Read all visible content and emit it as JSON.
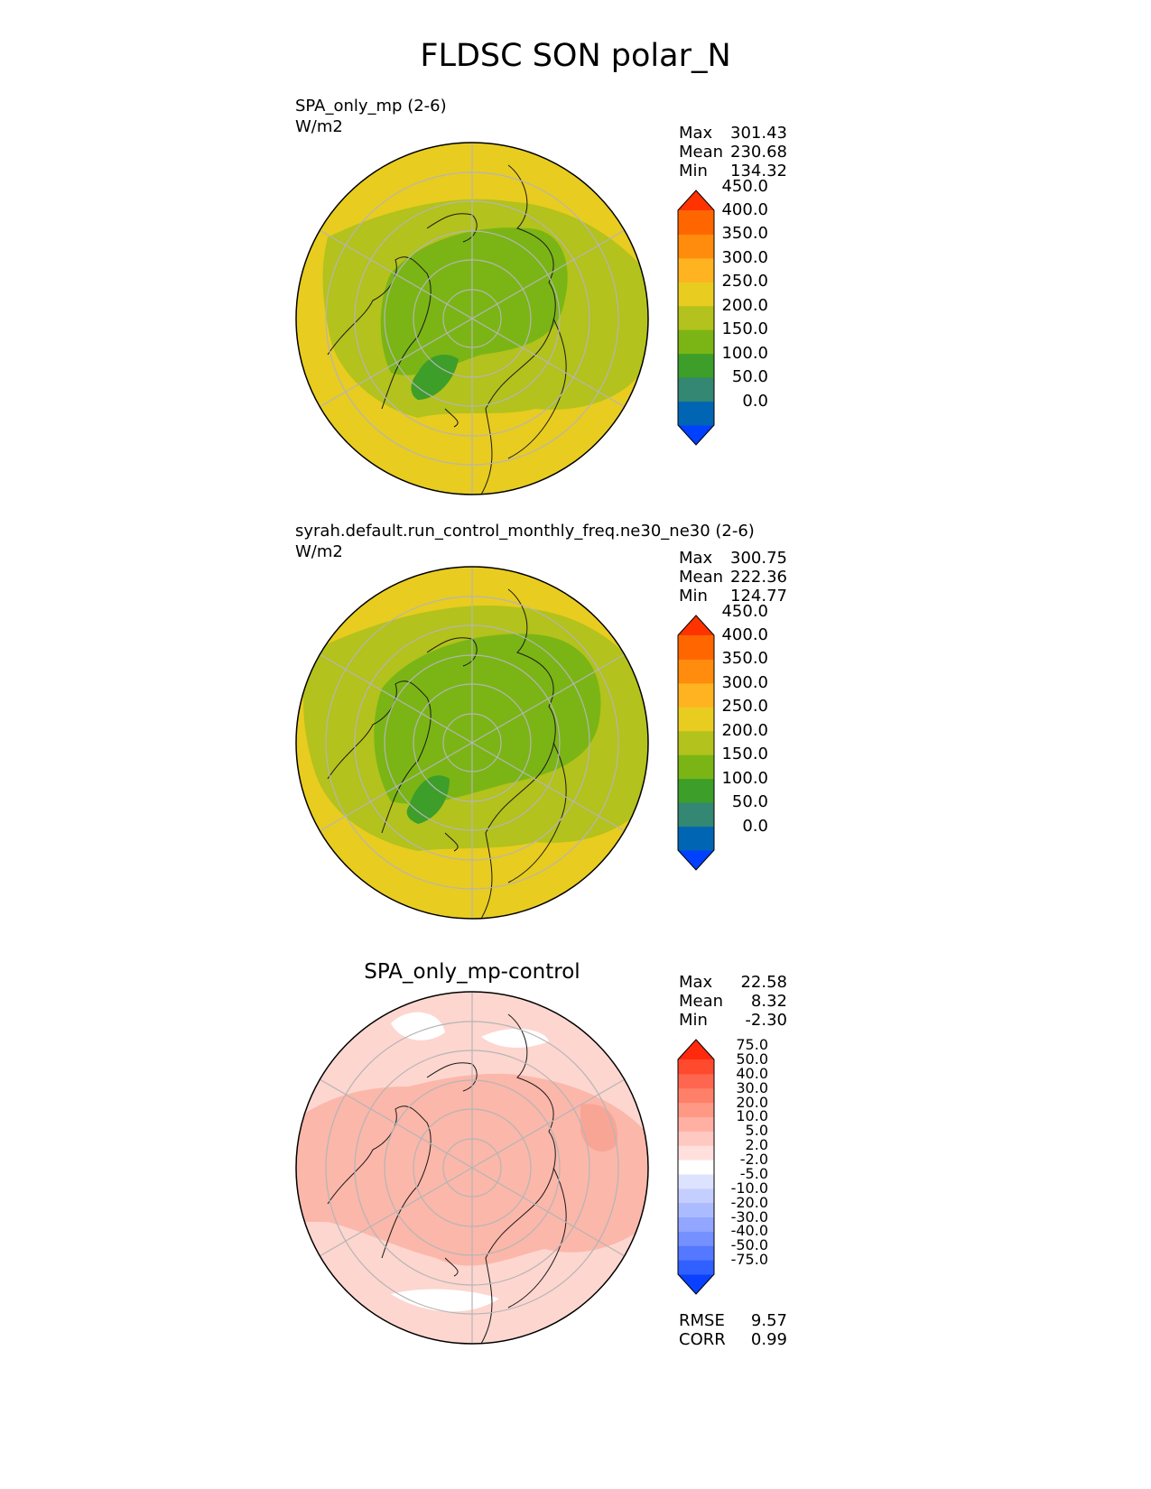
{
  "figure": {
    "title": "FLDSC SON polar_N"
  },
  "panels": [
    {
      "case": "SPA_only_mp (2-6)",
      "units": "W/m2",
      "stats": [
        {
          "label": "Max",
          "value": "301.43"
        },
        {
          "label": "Mean",
          "value": "230.68"
        },
        {
          "label": "Min",
          "value": "134.32"
        }
      ]
    },
    {
      "case": "syrah.default.run_control_monthly_freq.ne30_ne30 (2-6)",
      "units": "W/m2",
      "stats": [
        {
          "label": "Max",
          "value": "300.75"
        },
        {
          "label": "Mean",
          "value": "222.36"
        },
        {
          "label": "Min",
          "value": "124.77"
        }
      ]
    },
    {
      "title": "SPA_only_mp-control",
      "stats": [
        {
          "label": "Max",
          "value": "22.58"
        },
        {
          "label": "Mean",
          "value": "8.32"
        },
        {
          "label": "Min",
          "value": "-2.30"
        }
      ],
      "metrics": [
        {
          "label": "RMSE",
          "value": "9.57"
        },
        {
          "label": "CORR",
          "value": "0.99"
        }
      ]
    }
  ],
  "colorbars": {
    "main": {
      "colors": [
        "#0040ff",
        "#0066b3",
        "#338773",
        "#3d9e2a",
        "#7ab515",
        "#b3c21c",
        "#e8cc20",
        "#ffb320",
        "#ff8c0d",
        "#ff6600",
        "#ff3300"
      ],
      "ticks": [
        "0.0",
        "50.0",
        "100.0",
        "150.0",
        "200.0",
        "250.0",
        "300.0",
        "350.0",
        "400.0",
        "450.0"
      ]
    },
    "diff": {
      "colors": [
        "#0a40ff",
        "#3060ff",
        "#5478ff",
        "#7590ff",
        "#92a6ff",
        "#abbbff",
        "#c4cfff",
        "#dde3ff",
        "#ffffff",
        "#ffe0dc",
        "#ffc8c0",
        "#ffb0a2",
        "#ff9985",
        "#ff8068",
        "#ff6650",
        "#ff4a2e",
        "#ff2a0d"
      ],
      "ticks": [
        "-75.0",
        "-50.0",
        "-40.0",
        "-30.0",
        "-20.0",
        "-10.0",
        "-5.0",
        "-2.0",
        "2.0",
        "5.0",
        "10.0",
        "20.0",
        "30.0",
        "40.0",
        "50.0",
        "75.0"
      ]
    }
  },
  "map_fields": {
    "panel1": {
      "background": "#e8cc20",
      "levels": [
        "#b3c21c",
        "#7ab515",
        "#3d9e2a"
      ]
    },
    "panel2": {
      "background": "#e8cc20",
      "levels": [
        "#b3c21c",
        "#7ab515",
        "#3d9e2a"
      ]
    },
    "panel3": {
      "background": "#fdd6cf",
      "levels": [
        "#fbb7aa",
        "#f9a595",
        "#ffffff"
      ]
    }
  }
}
